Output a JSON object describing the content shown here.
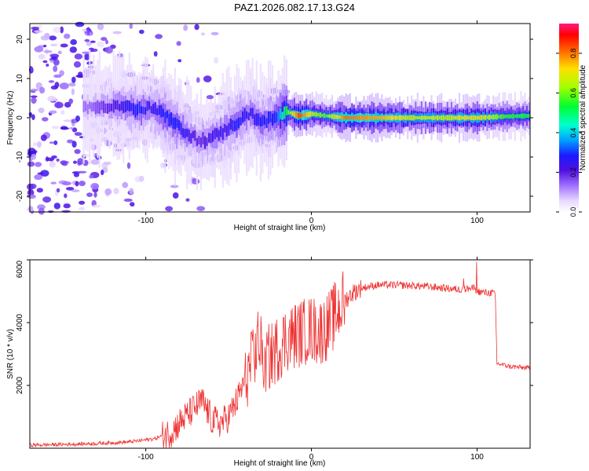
{
  "title": "PAZ1.2026.082.17.13.G24",
  "chart_data": [
    {
      "type": "heatmap",
      "xlabel": "Height of straight line (km)",
      "ylabel": "Frequency (Hz)",
      "xlim": [
        -170,
        132
      ],
      "ylim": [
        -24,
        24
      ],
      "x_ticks": [
        -100,
        0,
        100
      ],
      "y_ticks": [
        -20,
        -10,
        0,
        10,
        20
      ],
      "colorbar": {
        "label": "Normalized spectral amplitude",
        "range": [
          0,
          0.95
        ],
        "ticks": [
          0.0,
          0.2,
          0.4,
          0.6,
          0.8
        ],
        "colormap": [
          "#ffffff",
          "#e8d8ff",
          "#a070ff",
          "#6a1fe0",
          "#1a1aff",
          "#00d8ff",
          "#00ff40",
          "#c8ff00",
          "#ffd000",
          "#ff7000",
          "#ff0000",
          "#ff1a80"
        ]
      },
      "ridge": {
        "description_points": [
          [
            -135,
            2.5,
            0.15
          ],
          [
            -125,
            3,
            0.2
          ],
          [
            -115,
            3,
            0.25
          ],
          [
            -105,
            2,
            0.3
          ],
          [
            -97,
            2.5,
            0.25
          ],
          [
            -90,
            1,
            0.3
          ],
          [
            -82,
            -2,
            0.3
          ],
          [
            -75,
            -4,
            0.25
          ],
          [
            -68,
            -6,
            0.2
          ],
          [
            -60,
            -5,
            0.25
          ],
          [
            -52,
            -3,
            0.25
          ],
          [
            -45,
            -1,
            0.3
          ],
          [
            -38,
            1,
            0.25
          ],
          [
            -30,
            -1,
            0.3
          ],
          [
            -22,
            0,
            0.3
          ],
          [
            -15,
            1.5,
            0.6
          ],
          [
            -8,
            0.5,
            0.9
          ],
          [
            0,
            1,
            0.7
          ],
          [
            8,
            0.5,
            0.6
          ],
          [
            20,
            0,
            0.85
          ],
          [
            40,
            0,
            0.8
          ],
          [
            60,
            0,
            0.7
          ],
          [
            80,
            0,
            0.7
          ],
          [
            100,
            0,
            0.75
          ],
          [
            115,
            0.3,
            0.6
          ],
          [
            132,
            0.5,
            0.55
          ]
        ]
      }
    },
    {
      "type": "line",
      "xlabel": "Height of straight line (km)",
      "ylabel": "SNR (10 * v/v)",
      "xlim": [
        -170,
        132
      ],
      "ylim": [
        0,
        6000
      ],
      "x_ticks": [
        -100,
        0,
        100
      ],
      "y_ticks": [
        2000,
        4000,
        6000
      ],
      "line_color": "#ee3333",
      "series": [
        {
          "x": [
            -170,
            -150,
            -130,
            -110,
            -95,
            -85,
            -78,
            -72,
            -66,
            -60,
            -55,
            -50,
            -45,
            -40,
            -35,
            -32,
            -30,
            -28,
            -25,
            -20,
            -15,
            -10,
            -5,
            0,
            5,
            10,
            15,
            20,
            25,
            30,
            40,
            50,
            60,
            70,
            80,
            90,
            98,
            100,
            105,
            110,
            111,
            112,
            120,
            132
          ],
          "y": [
            100,
            120,
            150,
            200,
            300,
            500,
            900,
            1200,
            1500,
            900,
            800,
            1000,
            1500,
            2200,
            2800,
            3500,
            3000,
            2800,
            2900,
            3200,
            3500,
            3600,
            3700,
            3800,
            3700,
            3900,
            4300,
            4700,
            4950,
            5100,
            5200,
            5200,
            5180,
            5150,
            5100,
            5050,
            5100,
            5000,
            4950,
            4950,
            4900,
            2700,
            2600,
            2550
          ]
        }
      ]
    }
  ]
}
